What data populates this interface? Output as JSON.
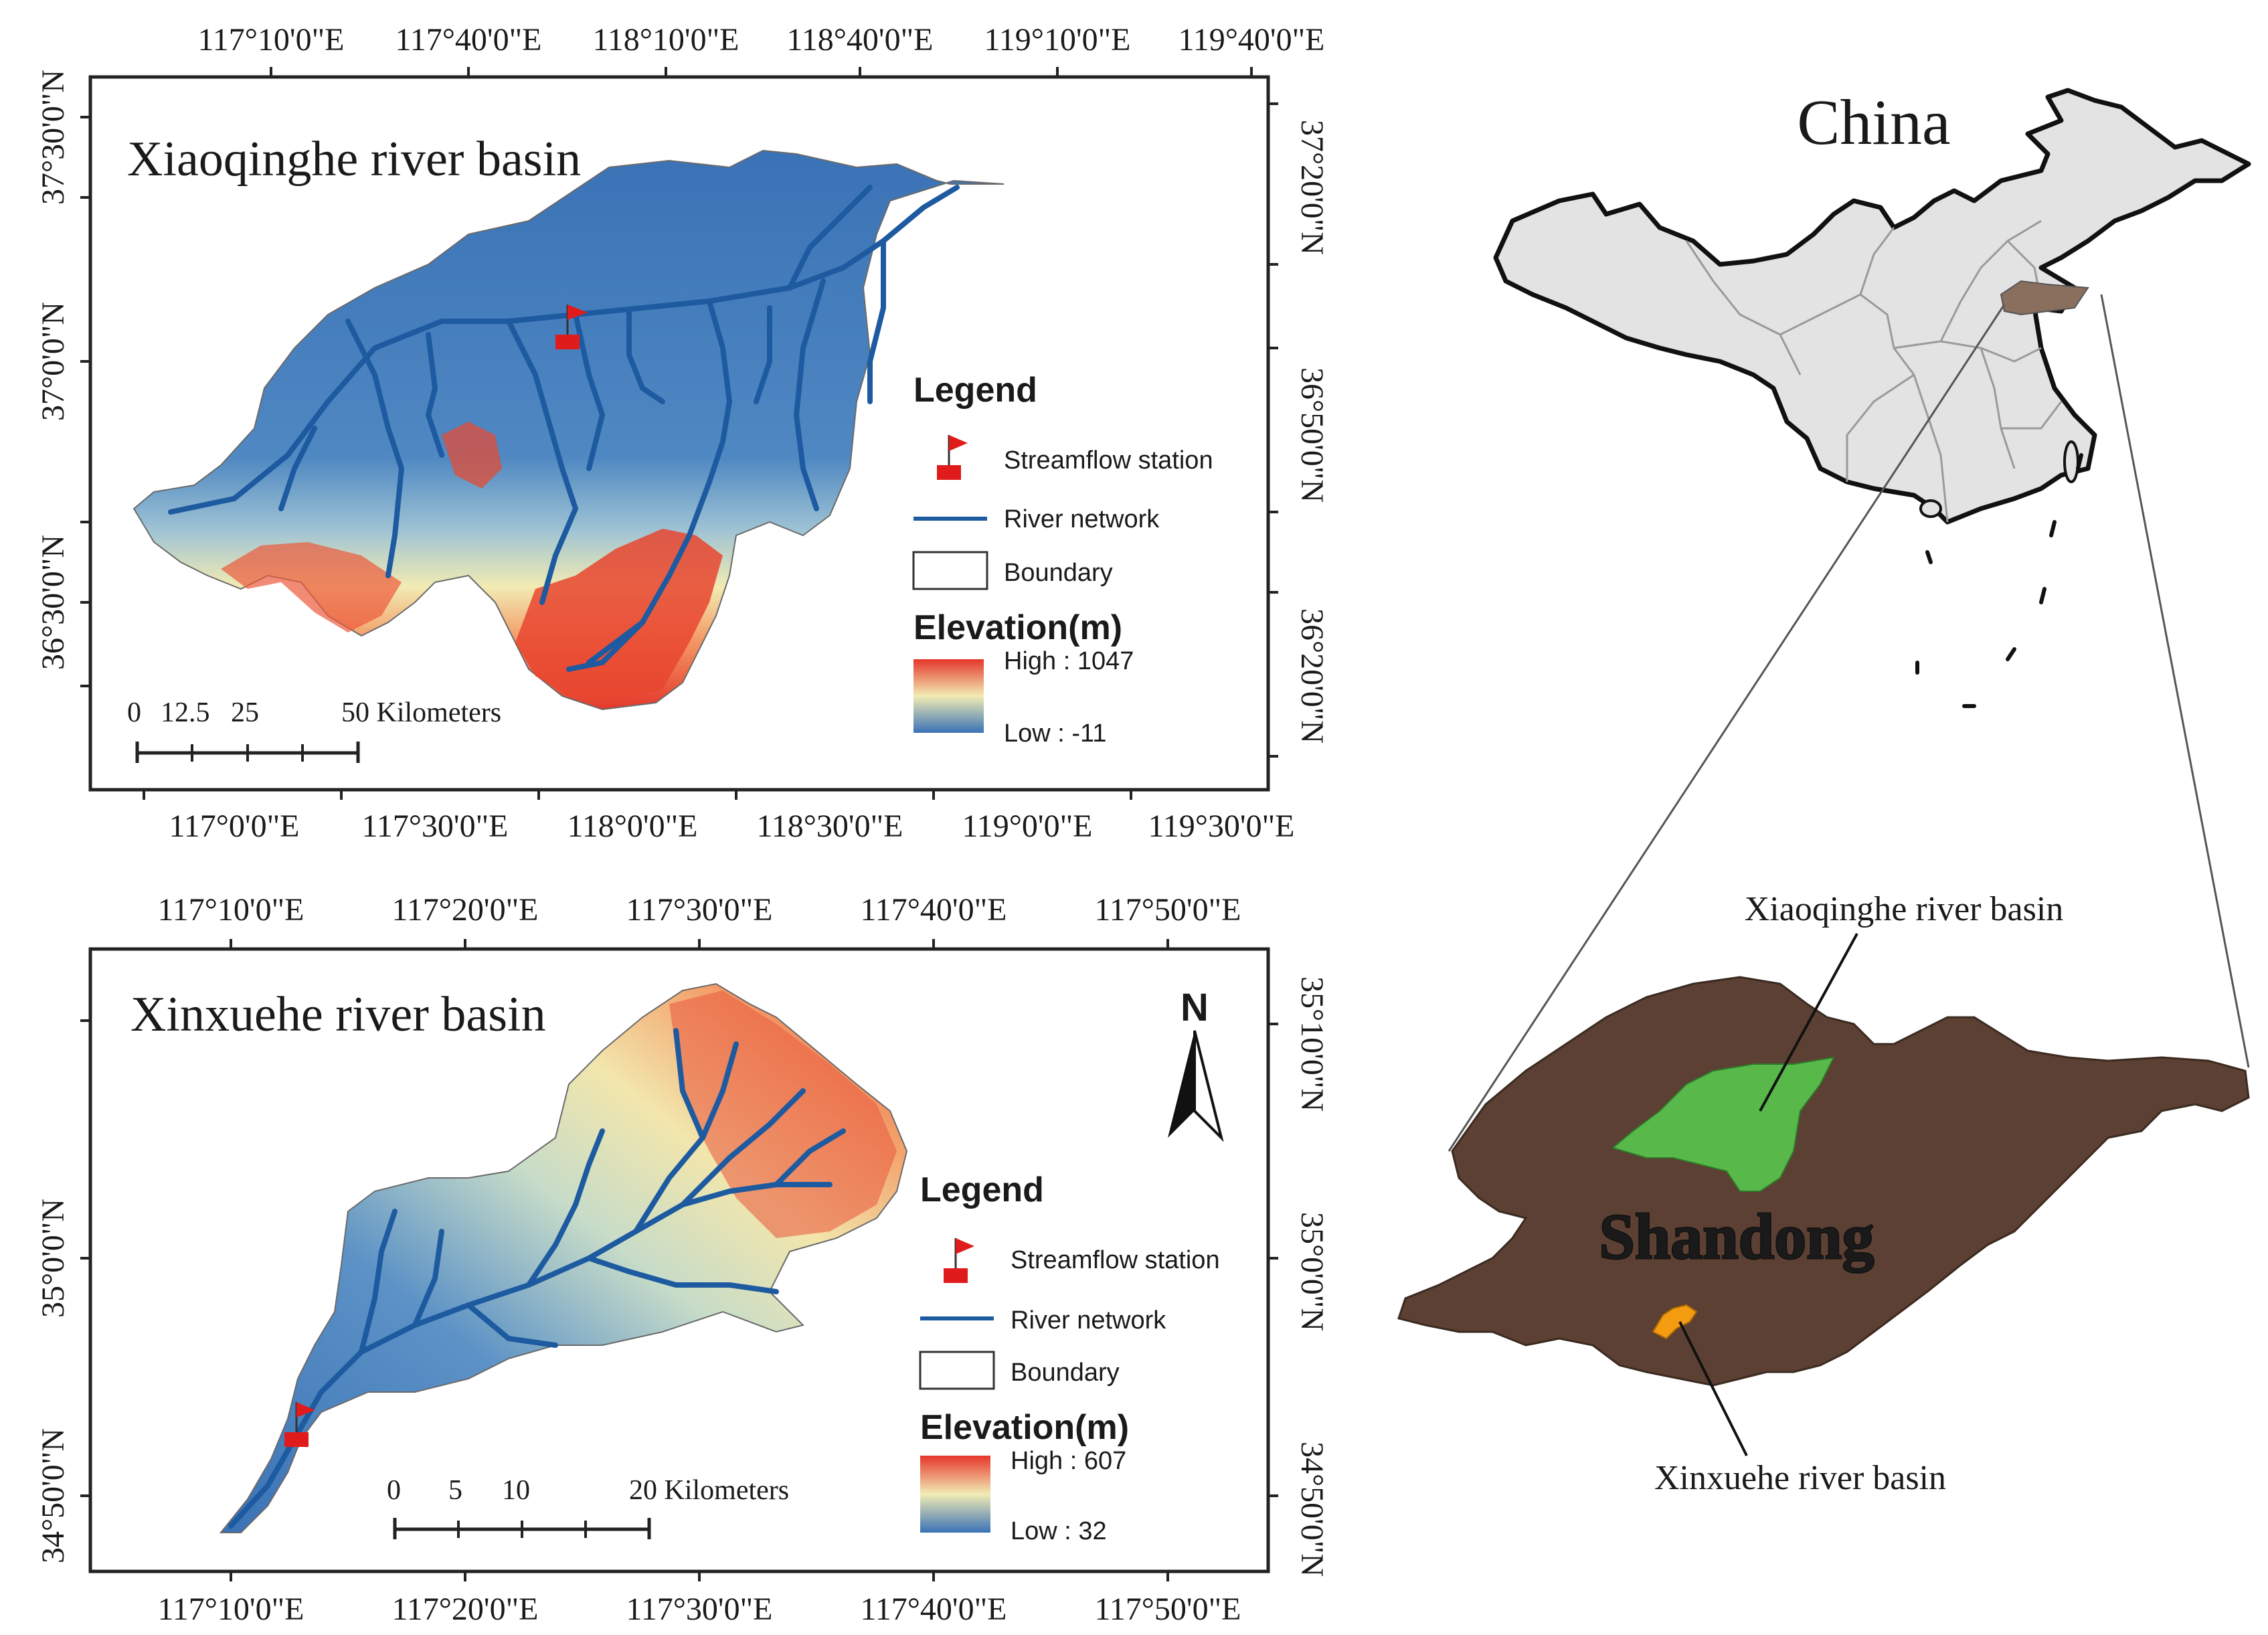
{
  "maps": {
    "top": {
      "title": "Xiaoqinghe river basin",
      "top_ticks": [
        "117°10'0\"E",
        "117°40'0\"E",
        "118°10'0\"E",
        "118°40'0\"E",
        "119°10'0\"E",
        "119°40'0\"E"
      ],
      "bottom_ticks": [
        "117°0'0\"E",
        "117°30'0\"E",
        "118°0'0\"E",
        "118°30'0\"E",
        "119°0'0\"E",
        "119°30'0\"E"
      ],
      "left_ticks": [
        "37°30'0\"N",
        "37°0'0\"N",
        "36°30'0\"N"
      ],
      "right_ticks": [
        "37°20'0\"N",
        "36°50'0\"N",
        "36°20'0\"N"
      ],
      "legend": {
        "heading": "Legend",
        "station": "Streamflow station",
        "river": "River network",
        "boundary": "Boundary",
        "elevation_heading": "Elevation(m)",
        "high": "High : 1047",
        "low": "Low : -11"
      },
      "scale": {
        "labels": [
          "0",
          "12.5",
          "25",
          "50 Kilometers"
        ]
      },
      "elevation_range_m": [
        -11,
        1047
      ]
    },
    "bottom": {
      "title": "Xinxuehe river basin",
      "top_ticks": [
        "117°10'0\"E",
        "117°20'0\"E",
        "117°30'0\"E",
        "117°40'0\"E",
        "117°50'0\"E"
      ],
      "bottom_ticks": [
        "117°10'0\"E",
        "117°20'0\"E",
        "117°30'0\"E",
        "117°40'0\"E",
        "117°50'0\"E"
      ],
      "left_ticks": [
        "35°0'0\"N",
        "34°50'0\"N"
      ],
      "right_ticks": [
        "35°10'0\"N",
        "35°0'0\"N",
        "34°50'0\"N"
      ],
      "north_label": "N",
      "legend": {
        "heading": "Legend",
        "station": "Streamflow station",
        "river": "River network",
        "boundary": "Boundary",
        "elevation_heading": "Elevation(m)",
        "high": "High : 607",
        "low": "Low : 32"
      },
      "scale": {
        "labels": [
          "0",
          "5",
          "10",
          "20 Kilometers"
        ]
      },
      "elevation_range_m": [
        32,
        607
      ]
    },
    "overview": {
      "country_label": "China",
      "province_label": "Shandong",
      "callout_xiaoqinghe": "Xiaoqinghe river basin",
      "callout_xinxuehe": "Xinxuehe river basin"
    }
  },
  "colors": {
    "elevation_low": "#3a6fb5",
    "elevation_mid": "#f3edb0",
    "elevation_high": "#e8382b",
    "river": "#1d5aa0",
    "station": "#e01b1b",
    "china_fill": "#e3e3e3",
    "shandong_fill": "#5c4033",
    "xiaoqinghe_fill": "#58b94a",
    "xinxuehe_fill": "#f39c12"
  }
}
